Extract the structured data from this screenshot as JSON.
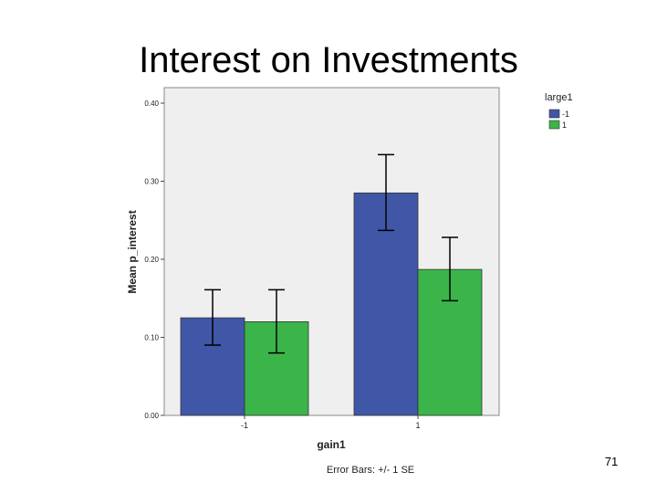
{
  "slide": {
    "title": "Interest on Investments",
    "page_number": "71"
  },
  "chart_data": {
    "type": "bar",
    "xlabel": "gain1",
    "ylabel": "Mean p_interest",
    "categories": [
      "-1",
      "1"
    ],
    "legend_title": "large1",
    "legend_position": "top-right",
    "series": [
      {
        "name": "-1",
        "color": "#3f57a6",
        "values": [
          0.125,
          0.285
        ],
        "err_low": [
          0.09,
          0.237
        ],
        "err_high": [
          0.161,
          0.334
        ]
      },
      {
        "name": "1",
        "color": "#3bb54a",
        "values": [
          0.12,
          0.187
        ],
        "err_low": [
          0.08,
          0.147
        ],
        "err_high": [
          0.161,
          0.228
        ]
      }
    ],
    "ylim": [
      0,
      0.4
    ],
    "yticks": [
      "0.00",
      "0.10",
      "0.20",
      "0.30",
      "0.40"
    ],
    "footnote": "Error Bars: +/- 1 SE",
    "plot_background": "#efefef",
    "grid": false
  }
}
